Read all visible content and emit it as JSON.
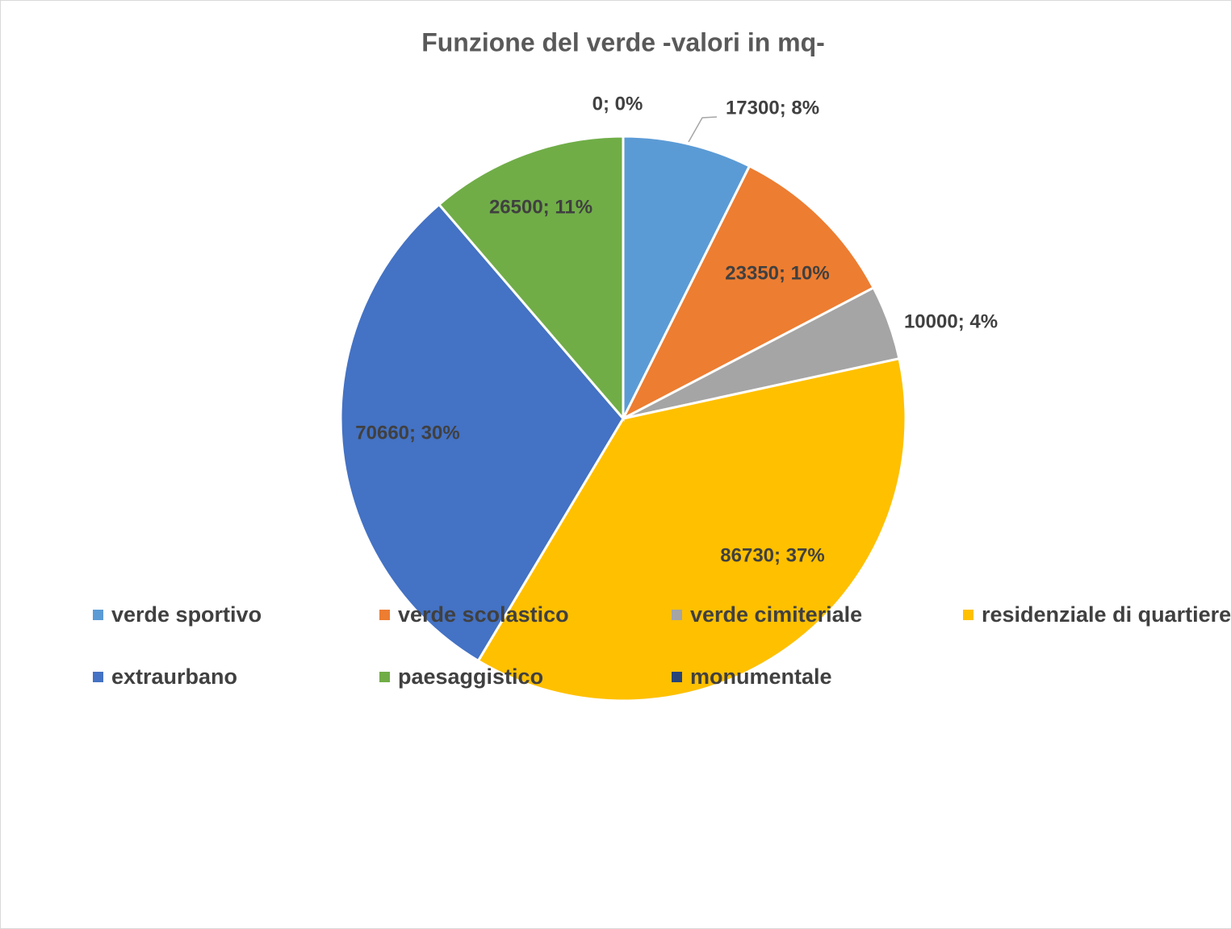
{
  "chart_data": {
    "type": "pie",
    "title": "Funzione del verde -valori in mq-",
    "categories": [
      "verde sportivo",
      "verde scolastico",
      "verde cimiteriale",
      "residenziale di quartiere",
      "extraurbano",
      "paesaggistico",
      "monumentale"
    ],
    "values": [
      17300,
      23350,
      10000,
      86730,
      70660,
      26500,
      0
    ],
    "value_labels": [
      "17300; 8%",
      "23350; 10%",
      "10000; 4%",
      "86730; 37%",
      "70660; 30%",
      "26500; 11%",
      "0; 0%"
    ],
    "colors": [
      "#5b9bd5",
      "#ed7d31",
      "#a5a5a5",
      "#ffc000",
      "#4472c4",
      "#70ad47",
      "#264478"
    ],
    "legend": "bottom"
  }
}
